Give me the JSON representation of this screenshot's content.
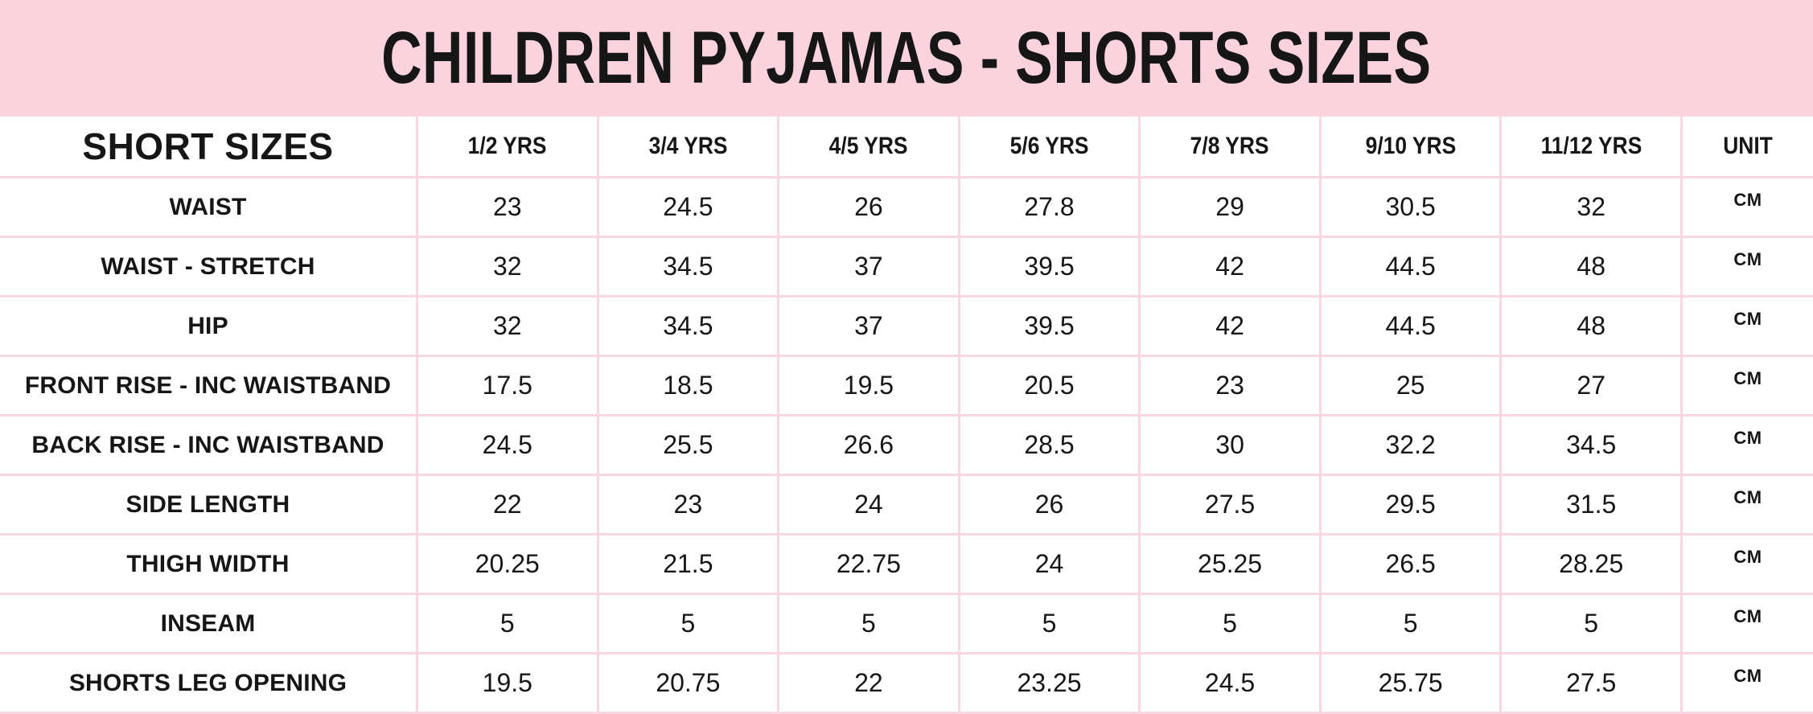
{
  "title": "CHILDREN PYJAMAS - SHORTS SIZES",
  "colors": {
    "banner_pink": "#fbd3de",
    "grid_line_pink": "#f8d7e1",
    "text_black": "#161616",
    "cell_background": "#ffffff"
  },
  "table": {
    "corner_header": "SHORT SIZES",
    "column_headers": [
      "1/2 YRS",
      "3/4 YRS",
      "4/5 YRS",
      "5/6 YRS",
      "7/8 YRS",
      "9/10 YRS",
      "11/12 YRS",
      "UNIT"
    ],
    "rows": [
      {
        "label": "WAIST",
        "values": [
          "23",
          "24.5",
          "26",
          "27.8",
          "29",
          "30.5",
          "32"
        ],
        "unit": "CM"
      },
      {
        "label": "WAIST - STRETCH",
        "values": [
          "32",
          "34.5",
          "37",
          "39.5",
          "42",
          "44.5",
          "48"
        ],
        "unit": "CM"
      },
      {
        "label": "HIP",
        "values": [
          "32",
          "34.5",
          "37",
          "39.5",
          "42",
          "44.5",
          "48"
        ],
        "unit": "CM"
      },
      {
        "label": "FRONT RISE - INC WAISTBAND",
        "values": [
          "17.5",
          "18.5",
          "19.5",
          "20.5",
          "23",
          "25",
          "27"
        ],
        "unit": "CM"
      },
      {
        "label": "BACK RISE - INC WAISTBAND",
        "values": [
          "24.5",
          "25.5",
          "26.6",
          "28.5",
          "30",
          "32.2",
          "34.5"
        ],
        "unit": "CM"
      },
      {
        "label": "SIDE LENGTH",
        "values": [
          "22",
          "23",
          "24",
          "26",
          "27.5",
          "29.5",
          "31.5"
        ],
        "unit": "CM"
      },
      {
        "label": "THIGH WIDTH",
        "values": [
          "20.25",
          "21.5",
          "22.75",
          "24",
          "25.25",
          "26.5",
          "28.25"
        ],
        "unit": "CM"
      },
      {
        "label": "INSEAM",
        "values": [
          "5",
          "5",
          "5",
          "5",
          "5",
          "5",
          "5"
        ],
        "unit": "CM"
      },
      {
        "label": "SHORTS LEG OPENING",
        "values": [
          "19.5",
          "20.75",
          "22",
          "23.25",
          "24.5",
          "25.75",
          "27.5"
        ],
        "unit": "CM"
      }
    ]
  },
  "chart_data": {
    "type": "table",
    "title": "CHILDREN PYJAMAS - SHORTS SIZES",
    "unit": "CM",
    "columns": [
      "SHORT SIZES",
      "1/2 YRS",
      "3/4 YRS",
      "4/5 YRS",
      "5/6 YRS",
      "7/8 YRS",
      "9/10 YRS",
      "11/12 YRS",
      "UNIT"
    ],
    "rows": [
      [
        "WAIST",
        23,
        24.5,
        26,
        27.8,
        29,
        30.5,
        32,
        "CM"
      ],
      [
        "WAIST - STRETCH",
        32,
        34.5,
        37,
        39.5,
        42,
        44.5,
        48,
        "CM"
      ],
      [
        "HIP",
        32,
        34.5,
        37,
        39.5,
        42,
        44.5,
        48,
        "CM"
      ],
      [
        "FRONT RISE - INC WAISTBAND",
        17.5,
        18.5,
        19.5,
        20.5,
        23,
        25,
        27,
        "CM"
      ],
      [
        "BACK RISE - INC WAISTBAND",
        24.5,
        25.5,
        26.6,
        28.5,
        30,
        32.2,
        34.5,
        "CM"
      ],
      [
        "SIDE LENGTH",
        22,
        23,
        24,
        26,
        27.5,
        29.5,
        31.5,
        "CM"
      ],
      [
        "THIGH WIDTH",
        20.25,
        21.5,
        22.75,
        24,
        25.25,
        26.5,
        28.25,
        "CM"
      ],
      [
        "INSEAM",
        5,
        5,
        5,
        5,
        5,
        5,
        5,
        "CM"
      ],
      [
        "SHORTS LEG OPENING",
        19.5,
        20.75,
        22,
        23.25,
        24.5,
        25.75,
        27.5,
        "CM"
      ]
    ]
  }
}
